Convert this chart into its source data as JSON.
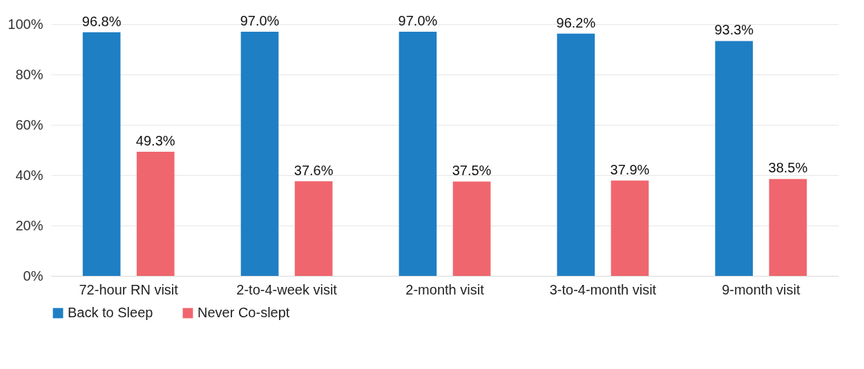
{
  "chart_data": {
    "type": "bar",
    "categories": [
      "72-hour RN visit",
      "2-to-4-week visit",
      "2-month visit",
      "3-to-4-month visit",
      "9-month visit"
    ],
    "series": [
      {
        "name": "Back to Sleep",
        "color": "#1f7fc4",
        "values": [
          96.8,
          97.0,
          97.0,
          96.2,
          93.3
        ],
        "value_labels": [
          "96.8%",
          "97.0%",
          "97.0%",
          "96.2%",
          "93.3%"
        ]
      },
      {
        "name": "Never Co-slept",
        "color": "#f0666e",
        "values": [
          49.3,
          37.6,
          37.5,
          37.9,
          38.5
        ],
        "value_labels": [
          "49.3%",
          "37.6%",
          "37.5%",
          "37.9%",
          "38.5%"
        ]
      }
    ],
    "ylim": [
      0,
      100
    ],
    "yticks": [
      {
        "value": 0,
        "label": "0%"
      },
      {
        "value": 20,
        "label": "20%"
      },
      {
        "value": 40,
        "label": "40%"
      },
      {
        "value": 60,
        "label": "60%"
      },
      {
        "value": 80,
        "label": "80%"
      },
      {
        "value": 100,
        "label": "100%"
      }
    ],
    "grid": "y",
    "legend": "bottom"
  }
}
